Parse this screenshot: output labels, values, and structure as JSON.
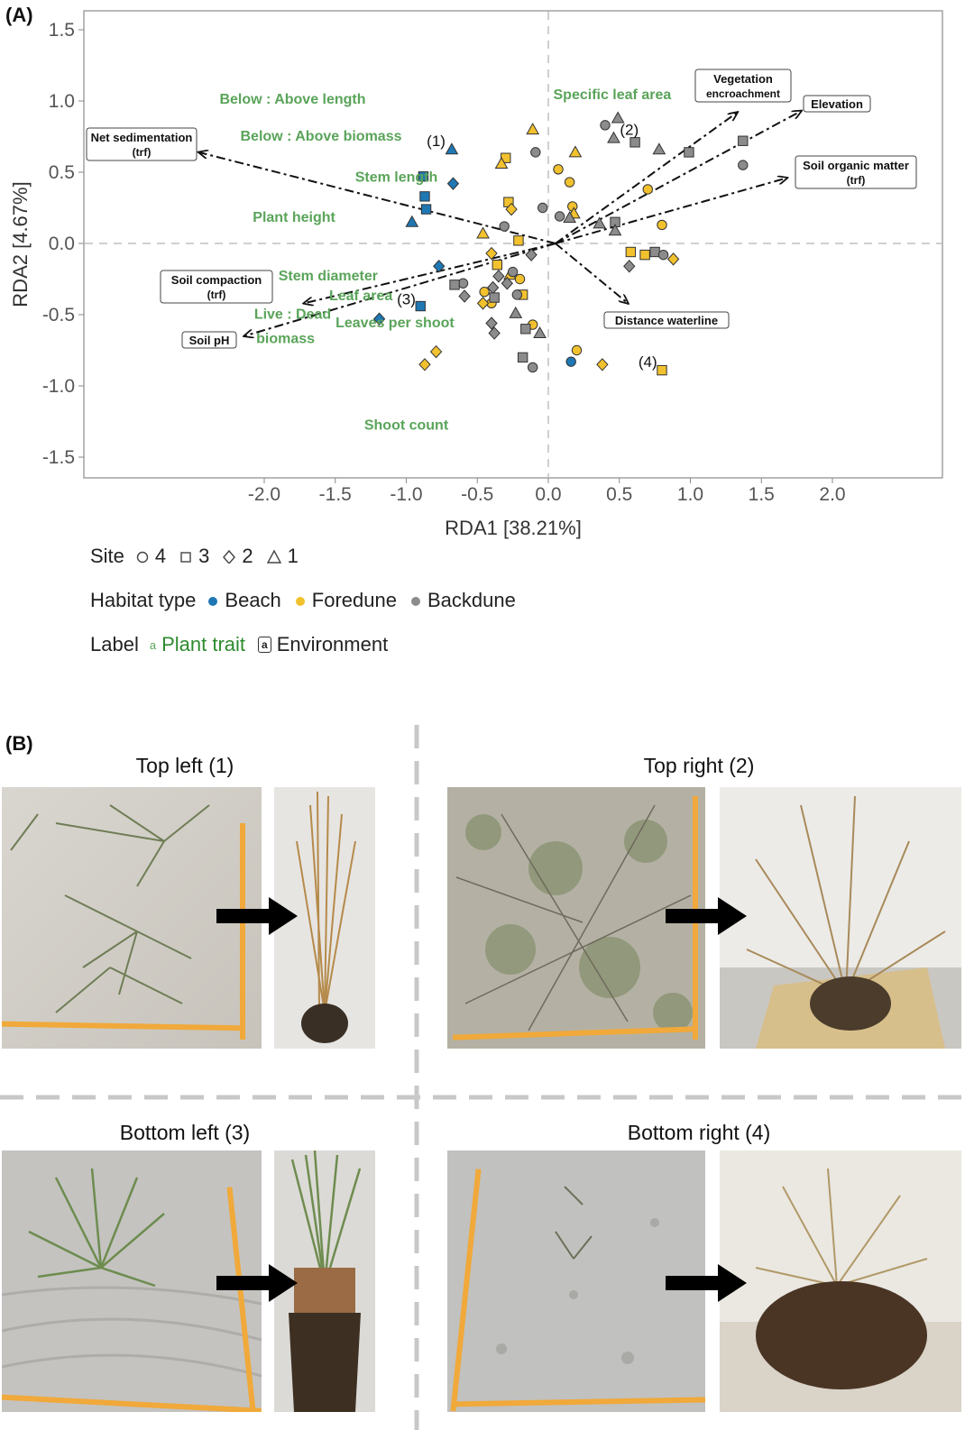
{
  "panel_a_label": "(A)",
  "panel_b_label": "(B)",
  "chart_data": {
    "type": "scatter",
    "xlabel": "RDA1 [38.21%]",
    "ylabel": "RDA2 [4.67%]",
    "xlim": [
      -3.2,
      2.8
    ],
    "ylim": [
      -1.65,
      1.65
    ],
    "xticks": [
      -2.0,
      -1.5,
      -1.0,
      -0.5,
      0.0,
      0.5,
      1.0,
      1.5,
      2.0
    ],
    "yticks": [
      1.5,
      1.0,
      0.5,
      0.0,
      -0.5,
      -1.0,
      -1.5
    ],
    "tick_labels_x": [
      "-2.0",
      "-1.5",
      "-1.0",
      "-0.5",
      "0.0",
      "0.5",
      "1.0",
      "1.5",
      "2.0"
    ],
    "tick_labels_y": [
      "1.5",
      "1.0",
      "0.5",
      "0.0",
      "-0.5",
      "-1.0",
      "-1.5"
    ],
    "grid": false,
    "zero_lines": "dashed",
    "colors": {
      "Beach": "#1f77b4",
      "Foredune": "#f2c12e",
      "Backdune": "#8c8c8c",
      "trait_text": "#5aa45a"
    },
    "points": [
      {
        "x": -0.68,
        "y": 0.66,
        "site": "1",
        "habitat": "Beach"
      },
      {
        "x": -0.88,
        "y": 0.47,
        "site": "3",
        "habitat": "Beach"
      },
      {
        "x": -0.67,
        "y": 0.42,
        "site": "2",
        "habitat": "Beach"
      },
      {
        "x": -0.87,
        "y": 0.33,
        "site": "3",
        "habitat": "Beach"
      },
      {
        "x": -0.86,
        "y": 0.24,
        "site": "3",
        "habitat": "Beach"
      },
      {
        "x": -0.96,
        "y": 0.15,
        "site": "1",
        "habitat": "Beach"
      },
      {
        "x": -0.77,
        "y": -0.16,
        "site": "2",
        "habitat": "Beach"
      },
      {
        "x": -0.9,
        "y": -0.44,
        "site": "3",
        "habitat": "Beach"
      },
      {
        "x": -1.19,
        "y": -0.53,
        "site": "2",
        "habitat": "Beach"
      },
      {
        "x": 0.16,
        "y": -0.83,
        "site": "4",
        "habitat": "Beach"
      },
      {
        "x": -0.11,
        "y": 0.8,
        "site": "1",
        "habitat": "Foredune"
      },
      {
        "x": -0.3,
        "y": 0.6,
        "site": "3",
        "habitat": "Foredune"
      },
      {
        "x": -0.33,
        "y": 0.56,
        "site": "1",
        "habitat": "Foredune"
      },
      {
        "x": 0.19,
        "y": 0.64,
        "site": "1",
        "habitat": "Foredune"
      },
      {
        "x": 0.07,
        "y": 0.52,
        "site": "4",
        "habitat": "Foredune"
      },
      {
        "x": 0.15,
        "y": 0.43,
        "site": "4",
        "habitat": "Foredune"
      },
      {
        "x": -0.28,
        "y": 0.29,
        "site": "3",
        "habitat": "Foredune"
      },
      {
        "x": -0.26,
        "y": 0.24,
        "site": "2",
        "habitat": "Foredune"
      },
      {
        "x": -0.46,
        "y": 0.07,
        "site": "1",
        "habitat": "Foredune"
      },
      {
        "x": 0.17,
        "y": 0.26,
        "site": "4",
        "habitat": "Foredune"
      },
      {
        "x": 0.18,
        "y": 0.21,
        "site": "1",
        "habitat": "Foredune"
      },
      {
        "x": 0.7,
        "y": 0.38,
        "site": "4",
        "habitat": "Foredune"
      },
      {
        "x": 0.8,
        "y": 0.13,
        "site": "4",
        "habitat": "Foredune"
      },
      {
        "x": -0.21,
        "y": 0.02,
        "site": "3",
        "habitat": "Foredune"
      },
      {
        "x": -0.4,
        "y": -0.07,
        "site": "2",
        "habitat": "Foredune"
      },
      {
        "x": -0.36,
        "y": -0.15,
        "site": "3",
        "habitat": "Foredune"
      },
      {
        "x": -0.27,
        "y": -0.22,
        "site": "1",
        "habitat": "Foredune"
      },
      {
        "x": -0.2,
        "y": -0.25,
        "site": "4",
        "habitat": "Foredune"
      },
      {
        "x": -0.45,
        "y": -0.34,
        "site": "4",
        "habitat": "Foredune"
      },
      {
        "x": -0.4,
        "y": -0.42,
        "site": "4",
        "habitat": "Foredune"
      },
      {
        "x": -0.18,
        "y": -0.36,
        "site": "3",
        "habitat": "Foredune"
      },
      {
        "x": -0.46,
        "y": -0.42,
        "site": "2",
        "habitat": "Foredune"
      },
      {
        "x": -0.11,
        "y": -0.57,
        "site": "4",
        "habitat": "Foredune"
      },
      {
        "x": -0.79,
        "y": -0.76,
        "site": "2",
        "habitat": "Foredune"
      },
      {
        "x": -0.87,
        "y": -0.85,
        "site": "2",
        "habitat": "Foredune"
      },
      {
        "x": 0.2,
        "y": -0.75,
        "site": "4",
        "habitat": "Foredune"
      },
      {
        "x": 0.38,
        "y": -0.85,
        "site": "2",
        "habitat": "Foredune"
      },
      {
        "x": 0.58,
        "y": -0.06,
        "site": "3",
        "habitat": "Foredune"
      },
      {
        "x": 0.68,
        "y": -0.08,
        "site": "3",
        "habitat": "Foredune"
      },
      {
        "x": 0.88,
        "y": -0.11,
        "site": "2",
        "habitat": "Foredune"
      },
      {
        "x": 0.8,
        "y": -0.89,
        "site": "3",
        "habitat": "Foredune"
      },
      {
        "x": 0.4,
        "y": 0.83,
        "site": "4",
        "habitat": "Backdune"
      },
      {
        "x": 0.49,
        "y": 0.88,
        "site": "1",
        "habitat": "Backdune"
      },
      {
        "x": 0.46,
        "y": 0.74,
        "site": "1",
        "habitat": "Backdune"
      },
      {
        "x": 0.61,
        "y": 0.71,
        "site": "3",
        "habitat": "Backdune"
      },
      {
        "x": 0.78,
        "y": 0.66,
        "site": "1",
        "habitat": "Backdune"
      },
      {
        "x": 0.99,
        "y": 0.64,
        "site": "3",
        "habitat": "Backdune"
      },
      {
        "x": 1.37,
        "y": 0.72,
        "site": "3",
        "habitat": "Backdune"
      },
      {
        "x": 1.37,
        "y": 0.55,
        "site": "4",
        "habitat": "Backdune"
      },
      {
        "x": -0.09,
        "y": 0.64,
        "site": "4",
        "habitat": "Backdune"
      },
      {
        "x": -0.04,
        "y": 0.25,
        "site": "4",
        "habitat": "Backdune"
      },
      {
        "x": 0.08,
        "y": 0.19,
        "site": "4",
        "habitat": "Backdune"
      },
      {
        "x": 0.15,
        "y": 0.18,
        "site": "1",
        "habitat": "Backdune"
      },
      {
        "x": -0.31,
        "y": 0.12,
        "site": "4",
        "habitat": "Backdune"
      },
      {
        "x": 0.47,
        "y": 0.15,
        "site": "3",
        "habitat": "Backdune"
      },
      {
        "x": 0.36,
        "y": 0.14,
        "site": "1",
        "habitat": "Backdune"
      },
      {
        "x": 0.47,
        "y": 0.09,
        "site": "1",
        "habitat": "Backdune"
      },
      {
        "x": -0.12,
        "y": -0.08,
        "site": "2",
        "habitat": "Backdune"
      },
      {
        "x": -0.25,
        "y": -0.2,
        "site": "4",
        "habitat": "Backdune"
      },
      {
        "x": -0.35,
        "y": -0.23,
        "site": "2",
        "habitat": "Backdune"
      },
      {
        "x": -0.29,
        "y": -0.28,
        "site": "2",
        "habitat": "Backdune"
      },
      {
        "x": -0.6,
        "y": -0.28,
        "site": "4",
        "habitat": "Backdune"
      },
      {
        "x": -0.66,
        "y": -0.29,
        "site": "3",
        "habitat": "Backdune"
      },
      {
        "x": -0.39,
        "y": -0.31,
        "site": "2",
        "habitat": "Backdune"
      },
      {
        "x": -0.59,
        "y": -0.37,
        "site": "2",
        "habitat": "Backdune"
      },
      {
        "x": -0.22,
        "y": -0.36,
        "site": "4",
        "habitat": "Backdune"
      },
      {
        "x": -0.38,
        "y": -0.38,
        "site": "3",
        "habitat": "Backdune"
      },
      {
        "x": -0.23,
        "y": -0.49,
        "site": "1",
        "habitat": "Backdune"
      },
      {
        "x": -0.4,
        "y": -0.56,
        "site": "2",
        "habitat": "Backdune"
      },
      {
        "x": -0.38,
        "y": -0.63,
        "site": "2",
        "habitat": "Backdune"
      },
      {
        "x": -0.16,
        "y": -0.6,
        "site": "3",
        "habitat": "Backdune"
      },
      {
        "x": -0.06,
        "y": -0.63,
        "site": "1",
        "habitat": "Backdune"
      },
      {
        "x": -0.18,
        "y": -0.8,
        "site": "3",
        "habitat": "Backdune"
      },
      {
        "x": -0.11,
        "y": -0.87,
        "site": "4",
        "habitat": "Backdune"
      },
      {
        "x": 0.57,
        "y": -0.16,
        "site": "2",
        "habitat": "Backdune"
      },
      {
        "x": 0.75,
        "y": -0.06,
        "site": "3",
        "habitat": "Backdune"
      },
      {
        "x": 0.81,
        "y": -0.08,
        "site": "4",
        "habitat": "Backdune"
      }
    ],
    "env_arrows": [
      {
        "label": "Net sedimentation",
        "sub": "(trf)",
        "x": -2.46,
        "y": 0.64
      },
      {
        "label": "Soil compaction",
        "sub": "(trf)",
        "x": -1.72,
        "y": -0.42
      },
      {
        "label": "Soil pH",
        "sub": "",
        "x": -2.14,
        "y": -0.65
      },
      {
        "label": "Vegetation",
        "sub": "encroachment",
        "x": 1.33,
        "y": 0.92
      },
      {
        "label": "Elevation",
        "sub": "",
        "x": 1.78,
        "y": 0.93
      },
      {
        "label": "Soil organic matter",
        "sub": "(trf)",
        "x": 1.68,
        "y": 0.46
      },
      {
        "label": "Distance waterline",
        "sub": "",
        "x": 0.56,
        "y": -0.42
      }
    ],
    "trait_labels": [
      {
        "text": "Below : Above length",
        "x": -1.8,
        "y": 1.02
      },
      {
        "text": "Below : Above biomass",
        "x": -1.6,
        "y": 0.76
      },
      {
        "text": "Specific leaf area",
        "x": 0.45,
        "y": 1.05
      },
      {
        "text": "Stem length",
        "x": -1.07,
        "y": 0.47
      },
      {
        "text": "Plant height",
        "x": -1.79,
        "y": 0.19
      },
      {
        "text": "Stem diameter",
        "x": -1.55,
        "y": -0.22
      },
      {
        "text": "Leaf area",
        "x": -1.32,
        "y": -0.36
      },
      {
        "text": "Live : Dead",
        "x": -1.8,
        "y": -0.49
      },
      {
        "text": "biomass",
        "x": -1.85,
        "y": -0.66
      },
      {
        "text": "Leaves per shoot",
        "x": -1.08,
        "y": -0.55
      },
      {
        "text": "Shoot count",
        "x": -1.0,
        "y": -1.27
      }
    ],
    "annotations": [
      {
        "text": "(1)",
        "x": -0.79,
        "y": 0.72
      },
      {
        "text": "(2)",
        "x": 0.57,
        "y": 0.8
      },
      {
        "text": "(3)",
        "x": -1.0,
        "y": -0.39
      },
      {
        "text": "(4)",
        "x": 0.7,
        "y": -0.83
      }
    ]
  },
  "legend": {
    "site_title": "Site",
    "site_items": [
      {
        "label": "4",
        "shape": "circle"
      },
      {
        "label": "3",
        "shape": "square"
      },
      {
        "label": "2",
        "shape": "diamond"
      },
      {
        "label": "1",
        "shape": "triangle"
      }
    ],
    "habitat_title": "Habitat type",
    "habitat_items": [
      {
        "label": "Beach",
        "color": "#1f77b4"
      },
      {
        "label": "Foredune",
        "color": "#f2c12e"
      },
      {
        "label": "Backdune",
        "color": "#8c8c8c"
      }
    ],
    "label_title": "Label",
    "label_trait_glyph": "a",
    "label_trait": "Plant trait",
    "label_env_glyph": "a",
    "label_env": "Environment"
  },
  "photos": {
    "top_left": "Top left (1)",
    "top_right": "Top right (2)",
    "bottom_left": "Bottom left (3)",
    "bottom_right": "Bottom right (4)"
  }
}
